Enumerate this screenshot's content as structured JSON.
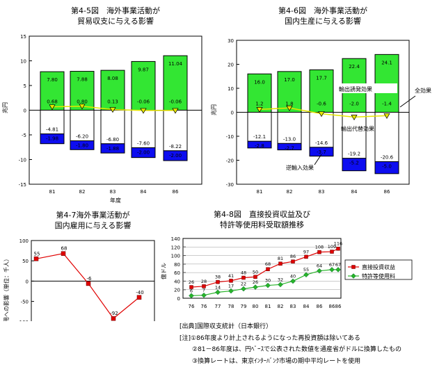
{
  "chart_data": [
    {
      "id": "c1",
      "type": "bar",
      "title_lines": [
        "第4-5図　海外事業活動が",
        "貿易収支に与える影響"
      ],
      "ylabel": "兆円",
      "xlabel": "年度",
      "categories": [
        "81",
        "82",
        "83",
        "84",
        "86"
      ],
      "ylim": [
        -15,
        15
      ],
      "yticks": [
        -15,
        -10,
        -5,
        0,
        5,
        10,
        15
      ],
      "total_effect": [
        0.68,
        0.8,
        0.13,
        -0.06,
        -0.06
      ],
      "positive": [
        7.8,
        7.88,
        8.08,
        9.87,
        11.04
      ],
      "negative": [
        -4.81,
        -6.2,
        -6.8,
        -7.6,
        -8.22
      ],
      "negative_extra": [
        -1.98,
        -1.8,
        -1.88,
        -2.0,
        -2.0
      ]
    },
    {
      "id": "c2",
      "type": "bar",
      "title_lines": [
        "第4-6図　海外事業活動が",
        "国内生産に与える影響"
      ],
      "ylabel": "兆円",
      "categories": [
        "81",
        "82",
        "83",
        "84",
        "86"
      ],
      "ylim": [
        -30,
        30
      ],
      "yticks": [
        -30,
        -20,
        -10,
        0,
        10,
        20,
        30
      ],
      "total_effect": [
        1.2,
        1.8,
        -0.6,
        -2.0,
        -1.4
      ],
      "positive": [
        16.0,
        17.0,
        17.7,
        22.4,
        24.1
      ],
      "negative": [
        -12.1,
        -13.0,
        -14.6,
        -19.2,
        -20.6
      ],
      "negative_extra": [
        -2.8,
        -2.7,
        -3.7,
        -5.2,
        -5.0
      ],
      "annotations": {
        "export_inducement": "輸出誘発効果",
        "total": "全効果",
        "export_substitution": "輸出代替効果",
        "reverse_import": "逆輸入効果"
      }
    },
    {
      "id": "c3",
      "type": "line",
      "title_lines": [
        "第4-7海外事業活動が",
        "国内雇用に与える影響"
      ],
      "ylabel": "雇用への影響（単位：千人）",
      "xlabel": "年度",
      "categories": [
        "81",
        "82",
        "83",
        "84",
        "86"
      ],
      "ylim": [
        -150,
        100
      ],
      "yticks": [
        -150,
        -100,
        -50,
        0,
        50,
        100
      ],
      "yticklabels": [
        "-150",
        "-100",
        "-50",
        "0",
        "50",
        "100"
      ],
      "values": [
        55,
        68,
        -6,
        -92,
        -40
      ]
    },
    {
      "id": "c4",
      "type": "line",
      "title_lines": [
        "第4-8図　直接投資収益及び",
        "特許等使用料受取額推移"
      ],
      "ylabel": "億ドル",
      "categories": [
        "76",
        "76",
        "77",
        "78",
        "79",
        "80",
        "81",
        "82",
        "83",
        "84",
        "86",
        "86",
        "86"
      ],
      "ylim": [
        0,
        140
      ],
      "yticks": [
        0,
        20,
        40,
        60,
        80,
        100,
        120,
        140
      ],
      "series": [
        {
          "name": "直接投資収益",
          "color": "#e00000",
          "values": [
            26,
            28,
            38,
            41,
            48,
            50,
            68,
            81,
            86,
            97,
            108,
            109,
            116
          ]
        },
        {
          "name": "特許等使用料",
          "color": "#28b428",
          "values": [
            6,
            7,
            14,
            17,
            22,
            26,
            30,
            32,
            40,
            55,
            64,
            67,
            67
          ]
        }
      ]
    }
  ],
  "notes": {
    "source": "[出典]国際収支統計（日本銀行）",
    "note1": "[注]①86年度より計上されるようになった再投資額は除いてある",
    "note2": "　　②81－86年度は、円ﾍﾞｰｽで公表された数値を通産省がドルに換算したもの",
    "note3": "　　③換算レートは、東京ｲﾝﾀｰﾊﾞﾝｸ市場の期中平均レートを使用"
  },
  "colors": {
    "green": "#33e633",
    "blue": "#0d0df0",
    "yellow": "#e6e600",
    "red": "#e00000",
    "lightgreen": "#28b428"
  }
}
